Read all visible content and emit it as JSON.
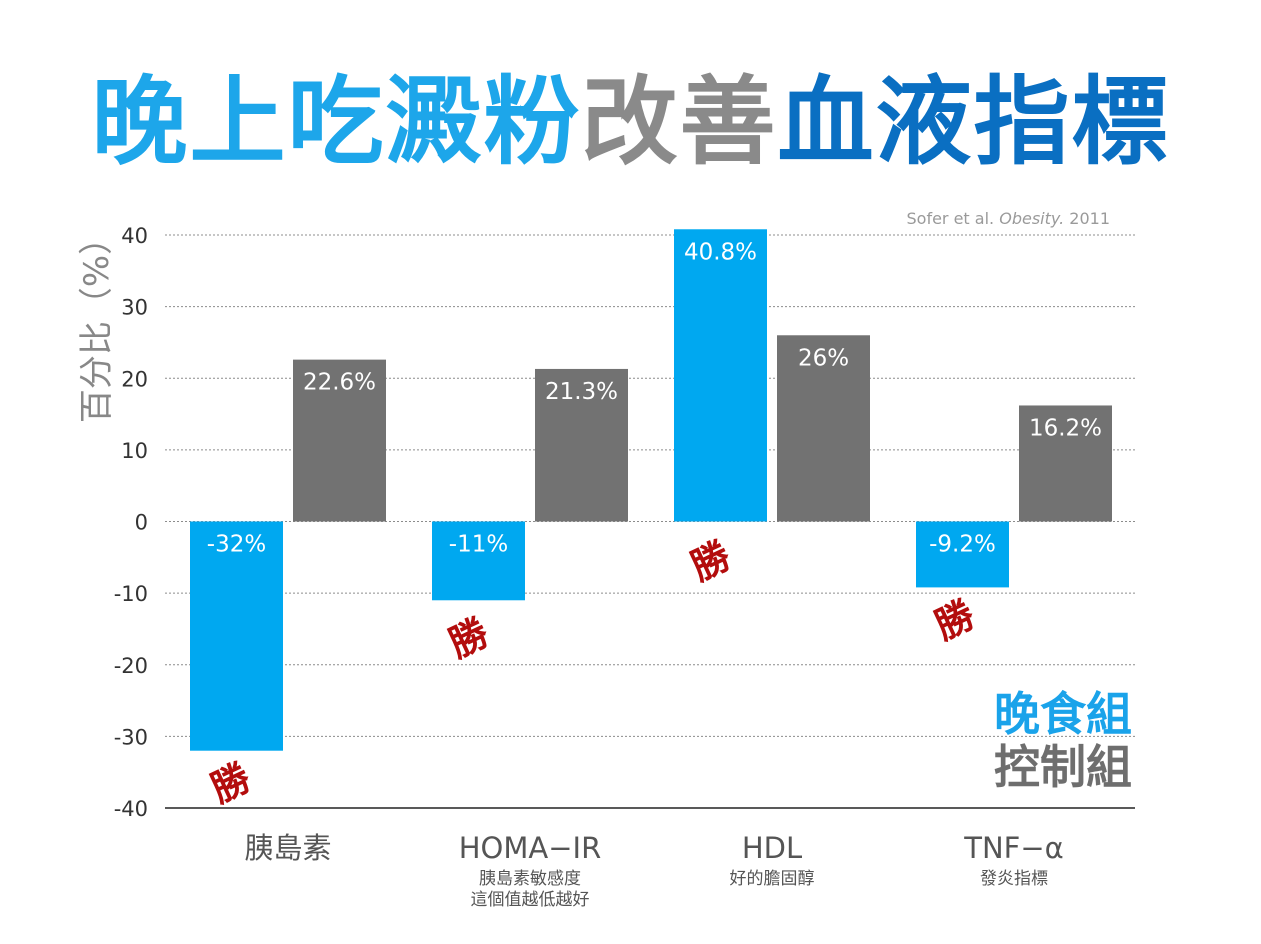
{
  "title": {
    "parts": [
      {
        "text": "晚上吃澱粉",
        "color": "#1da6ea"
      },
      {
        "text": "改善",
        "color": "#8a8a8a"
      },
      {
        "text": "血液指標",
        "color": "#0a6fc2"
      }
    ]
  },
  "source": {
    "prefix": "Sofer et al. ",
    "journal": "Obesity.",
    "year": " 2011"
  },
  "legend": {
    "items": [
      {
        "label": "晚食組",
        "color": "#1aa3ea"
      },
      {
        "label": "控制組",
        "color": "#6e6e6e"
      }
    ]
  },
  "colors": {
    "evening": "#00a8f0",
    "control": "#727272",
    "win": "#b30d0d",
    "axis_text": "#333333",
    "ylabel": "#888888",
    "grid": "#8c8c8c"
  },
  "chart_data": {
    "type": "bar",
    "ylabel": "百分比（%）",
    "ylim": [
      -40,
      40
    ],
    "yticks": [
      "-40",
      "-30",
      "-20",
      "-10",
      "0",
      "10",
      "20",
      "30",
      "40"
    ],
    "grid": true,
    "categories": [
      {
        "label": "胰島素",
        "sub": []
      },
      {
        "label": "HOMA−IR",
        "sub": [
          "胰島素敏感度",
          "這個值越低越好"
        ]
      },
      {
        "label": "HDL",
        "sub": [
          "好的膽固醇"
        ]
      },
      {
        "label": "TNF−α",
        "sub": [
          "發炎指標"
        ]
      }
    ],
    "series": [
      {
        "name": "晚食組",
        "values": [
          -32,
          -11,
          40.8,
          -9.2
        ],
        "labels": [
          "-32%",
          "-11%",
          "40.8%",
          "-9.2%"
        ]
      },
      {
        "name": "控制組",
        "values": [
          22.6,
          21.3,
          26,
          16.2
        ],
        "labels": [
          "22.6%",
          "21.3%",
          "26%",
          "16.2%"
        ]
      }
    ],
    "annotations": [
      {
        "text": "勝",
        "category": 0
      },
      {
        "text": "勝",
        "category": 1
      },
      {
        "text": "勝",
        "category": 2
      },
      {
        "text": "勝",
        "category": 3
      }
    ]
  }
}
